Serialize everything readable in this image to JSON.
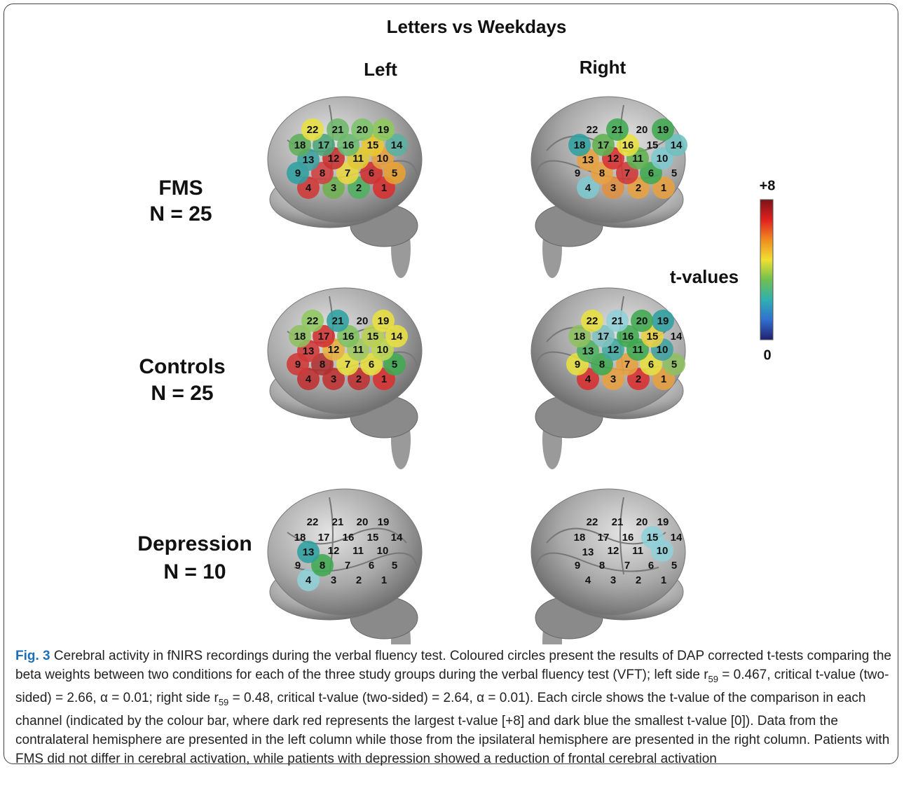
{
  "figure": {
    "title": "Letters vs Weekdays",
    "columns": [
      "Left",
      "Right"
    ],
    "channels": [
      "1",
      "2",
      "3",
      "4",
      "5",
      "6",
      "7",
      "8",
      "9",
      "10",
      "11",
      "12",
      "13",
      "14",
      "15",
      "16",
      "17",
      "18",
      "19",
      "20",
      "21",
      "22"
    ],
    "rows": [
      {
        "group": "FMS",
        "n": "N = 25",
        "panels": [
          {
            "colors": [
              "#d83030",
              "#50b060",
              "#70b050",
              "#d03838",
              "#e8a030",
              "#d03030",
              "#e8d840",
              "#d04040",
              "#30a0a0",
              "#e8a040",
              "#e0c830",
              "#c83030",
              "#3aa0a0",
              "#5ab0a0",
              "#e8c830",
              "#6ab870",
              "#4aa67a",
              "#5fae5a",
              "#8ec85a",
              "#7cc46a",
              "#6db86a",
              "#e8e040"
            ]
          },
          {
            "colors": [
              "#e8a040",
              "#e8a040",
              "#e09040",
              "#80c8d0",
              null,
              "#40a850",
              "#d03838",
              "#e8a040",
              null,
              "#80c8d0",
              "#60b050",
              "#d83030",
              "#e8a040",
              "#70c0c0",
              null,
              "#e8e040",
              "#60b050",
              "#30a0a0",
              "#40a850",
              null,
              "#40a850",
              null
            ]
          }
        ]
      },
      {
        "group": "Controls",
        "n": "N = 25",
        "panels": [
          {
            "colors": [
              "#d83030",
              "#c03030",
              "#c03030",
              "#c03030",
              "#40a850",
              "#e8e040",
              "#e8e040",
              "#b03030",
              "#d03838",
              "#c0d850",
              "#a0c860",
              "#e8b040",
              "#d03838",
              "#e8e040",
              "#b8d050",
              "#80c060",
              "#d03030",
              "#90c060",
              "#e8e040",
              null,
              "#30a0a0",
              "#90c860"
            ]
          },
          {
            "colors": [
              "#e8a040",
              "#d83030",
              "#e8a040",
              "#d83030",
              "#90c060",
              "#e8e040",
              "#e8a040",
              "#40a850",
              "#e8e040",
              "#40a0a0",
              "#40a850",
              "#40a8a0",
              "#50b060",
              null,
              "#e8d040",
              "#40a850",
              "#80c0c0",
              "#90c060",
              "#30a0a0",
              "#40a850",
              "#90d0d8",
              "#e8e040"
            ]
          }
        ]
      },
      {
        "group": "Depression",
        "n": "N = 10",
        "panels": [
          {
            "colors": [
              null,
              null,
              null,
              "#90d0d8",
              null,
              null,
              null,
              "#40a850",
              null,
              null,
              null,
              null,
              "#30a0a0",
              null,
              null,
              null,
              null,
              null,
              null,
              null,
              null,
              null
            ]
          },
          {
            "colors": [
              null,
              null,
              null,
              null,
              null,
              null,
              null,
              null,
              null,
              "#90d0d8",
              null,
              null,
              null,
              null,
              "#90d0d8",
              null,
              null,
              null,
              null,
              null,
              null,
              null
            ]
          }
        ]
      }
    ],
    "colorbar": {
      "max": "+8",
      "min": "0",
      "label": "t-values",
      "colors": [
        "#7a1418",
        "#e02020",
        "#f08a20",
        "#f0e030",
        "#70c050",
        "#30b0b0",
        "#3070d0",
        "#202070"
      ]
    }
  },
  "caption": {
    "label": "Fig. 3",
    "runs": [
      "Cerebral activity in fNIRS recordings during the verbal fluency test. Coloured circles present the results of DAP corrected t-tests comparing the beta weights between two conditions for each of the three study groups during the verbal fluency test (VFT); left side r",
      "59",
      " = 0.467, critical t-value (two-sided) = 2.66, α = 0.01; right side r",
      "59",
      " = 0.48, critical t-value (two-sided) = 2.64, α = 0.01). Each circle shows the t-value of the comparison in each channel (indicated by the colour bar, where dark red represents the largest t-value [+8] and dark blue the smallest t-value [0]). Data from the contralateral hemisphere are presented in the left column while those from the ipsilateral hemisphere are presented in the right column. Patients with FMS did not differ in cerebral activation, while patients with depression showed a reduction of frontal cerebral activation"
    ]
  }
}
